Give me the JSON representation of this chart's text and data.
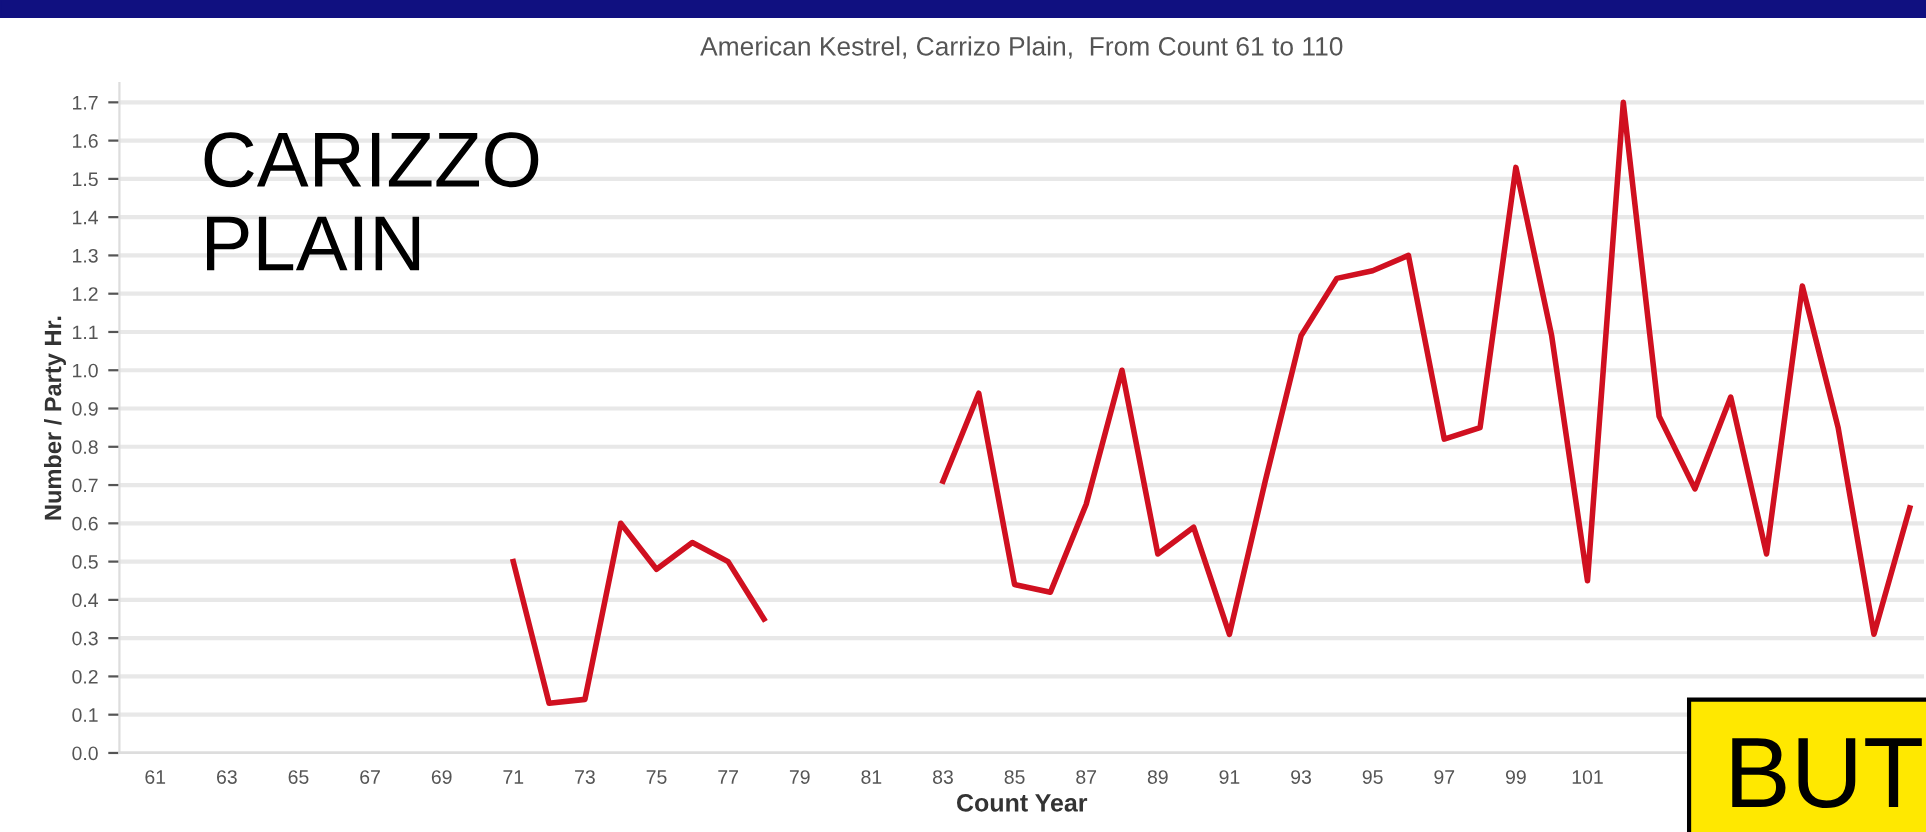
{
  "chart_data": {
    "type": "line",
    "title": "American Kestrel, Carrizo Plain,  From Count 61 to 110",
    "xlabel": "Count Year",
    "ylabel": "Number / Party Hr.",
    "x": [
      71,
      72,
      73,
      74,
      75,
      76,
      77,
      78,
      79,
      80,
      81,
      82,
      83,
      84,
      85,
      86,
      87,
      88,
      89,
      90,
      91,
      92,
      93,
      94,
      95,
      96,
      97,
      98,
      99,
      100,
      101,
      102,
      103,
      104,
      105,
      106,
      107,
      108,
      109,
      110
    ],
    "series": [
      {
        "color": "#d01020",
        "values": [
          0.5,
          0.13,
          0.14,
          0.6,
          0.48,
          0.55,
          0.5,
          0.35,
          null,
          null,
          null,
          null,
          0.71,
          0.94,
          0.44,
          0.42,
          0.65,
          1.0,
          0.52,
          0.59,
          0.31,
          0.71,
          1.09,
          1.24,
          1.26,
          1.3,
          0.82,
          0.85,
          1.53,
          1.09,
          0.45,
          1.7,
          0.88,
          0.69,
          0.93,
          0.52,
          1.22,
          0.85,
          0.31,
          0.64
        ]
      }
    ],
    "xlim": [
      60,
      110.4
    ],
    "xticks": [
      61,
      63,
      65,
      67,
      69,
      71,
      73,
      75,
      77,
      79,
      81,
      83,
      85,
      87,
      89,
      91,
      93,
      95,
      97,
      99,
      101
    ],
    "ylim": [
      0,
      1.75
    ],
    "yticks": [
      {
        "value": 0,
        "label": "0.0"
      },
      0.1,
      0.2,
      0.3,
      0.4,
      0.5,
      0.6,
      0.7,
      0.8,
      0.9,
      {
        "value": 1,
        "label": "1.0"
      },
      1.1,
      1.2,
      1.3,
      1.4,
      1.5,
      1.6,
      1.7
    ],
    "grid": "y",
    "marker": "none",
    "line_style": "solid",
    "legend": false,
    "annotations": [
      "CARIZZO\nPLAIN",
      "BUT"
    ]
  }
}
